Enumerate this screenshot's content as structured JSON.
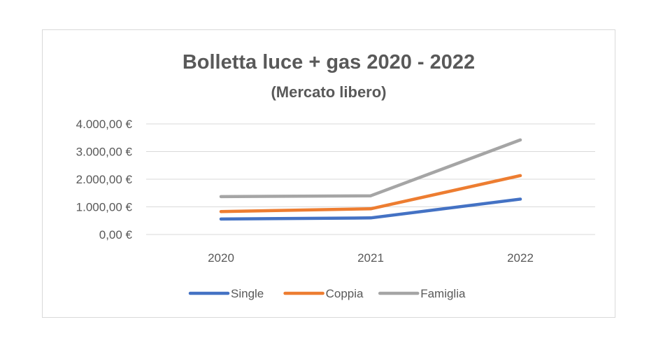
{
  "chart_data": {
    "type": "line",
    "title": "Bolletta luce + gas 2020 - 2022",
    "subtitle": "(Mercato libero)",
    "categories": [
      "2020",
      "2021",
      "2022"
    ],
    "y_ticks": [
      "0,00 €",
      "1.000,00 €",
      "2.000,00 €",
      "3.000,00 €",
      "4.000,00 €"
    ],
    "ylim": [
      0,
      4000
    ],
    "grid": true,
    "legend_position": "bottom",
    "series": [
      {
        "name": "Single",
        "color": "#4472c4",
        "values": [
          560,
          600,
          1280
        ]
      },
      {
        "name": "Coppia",
        "color": "#ed7d31",
        "values": [
          830,
          930,
          2130
        ]
      },
      {
        "name": "Famiglia",
        "color": "#a5a5a5",
        "values": [
          1370,
          1400,
          3420
        ]
      }
    ]
  }
}
